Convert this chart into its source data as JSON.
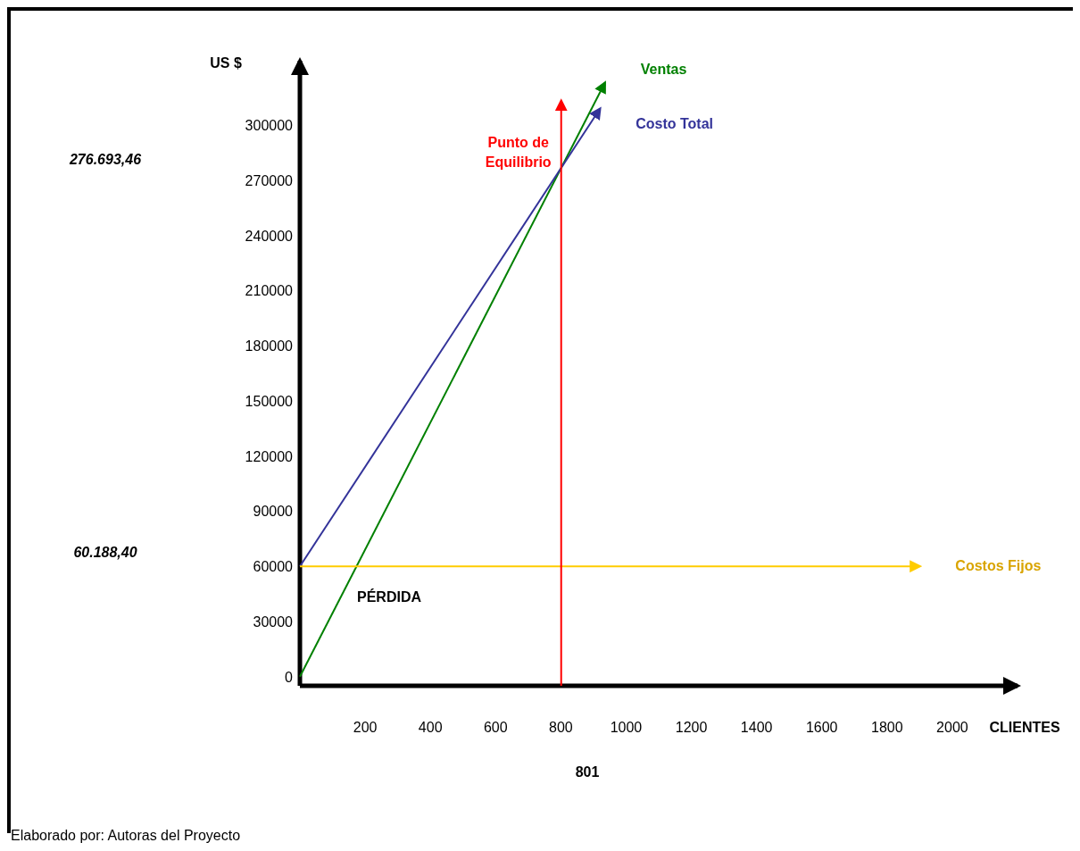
{
  "chart_data": {
    "type": "line",
    "xlabel": "CLIENTES",
    "ylabel": "US $",
    "xlim": [
      0,
      2200
    ],
    "xticks": [
      200,
      400,
      600,
      800,
      1000,
      1200,
      1400,
      1600,
      1800,
      2000
    ],
    "ylim": [
      -5000,
      335000
    ],
    "yticks": [
      0,
      30000,
      60000,
      90000,
      120000,
      150000,
      180000,
      210000,
      240000,
      270000,
      300000
    ],
    "grid": false,
    "marker": "none",
    "line_style": "solid",
    "series": [
      {
        "name": "Ventas",
        "color": "#008000",
        "x": [
          0,
          935
        ],
        "values": [
          0,
          323000
        ]
      },
      {
        "name": "Costo Total",
        "color": "#333399",
        "x": [
          0,
          920
        ],
        "values": [
          60000,
          308900
        ]
      },
      {
        "name": "Costos Fijos",
        "color": "#ffcc00",
        "x": [
          0,
          1900
        ],
        "values": [
          60000,
          60000
        ]
      }
    ],
    "ref_lines": [
      {
        "axis": "x",
        "value": 801,
        "label": "Punto de Equilibrio",
        "color": "#ff0000"
      }
    ],
    "annotations": [
      "276.693,46",
      "60.188,40",
      "801",
      "PÉRDIDA",
      "Elaborado por: Autoras del Proyecto"
    ]
  }
}
